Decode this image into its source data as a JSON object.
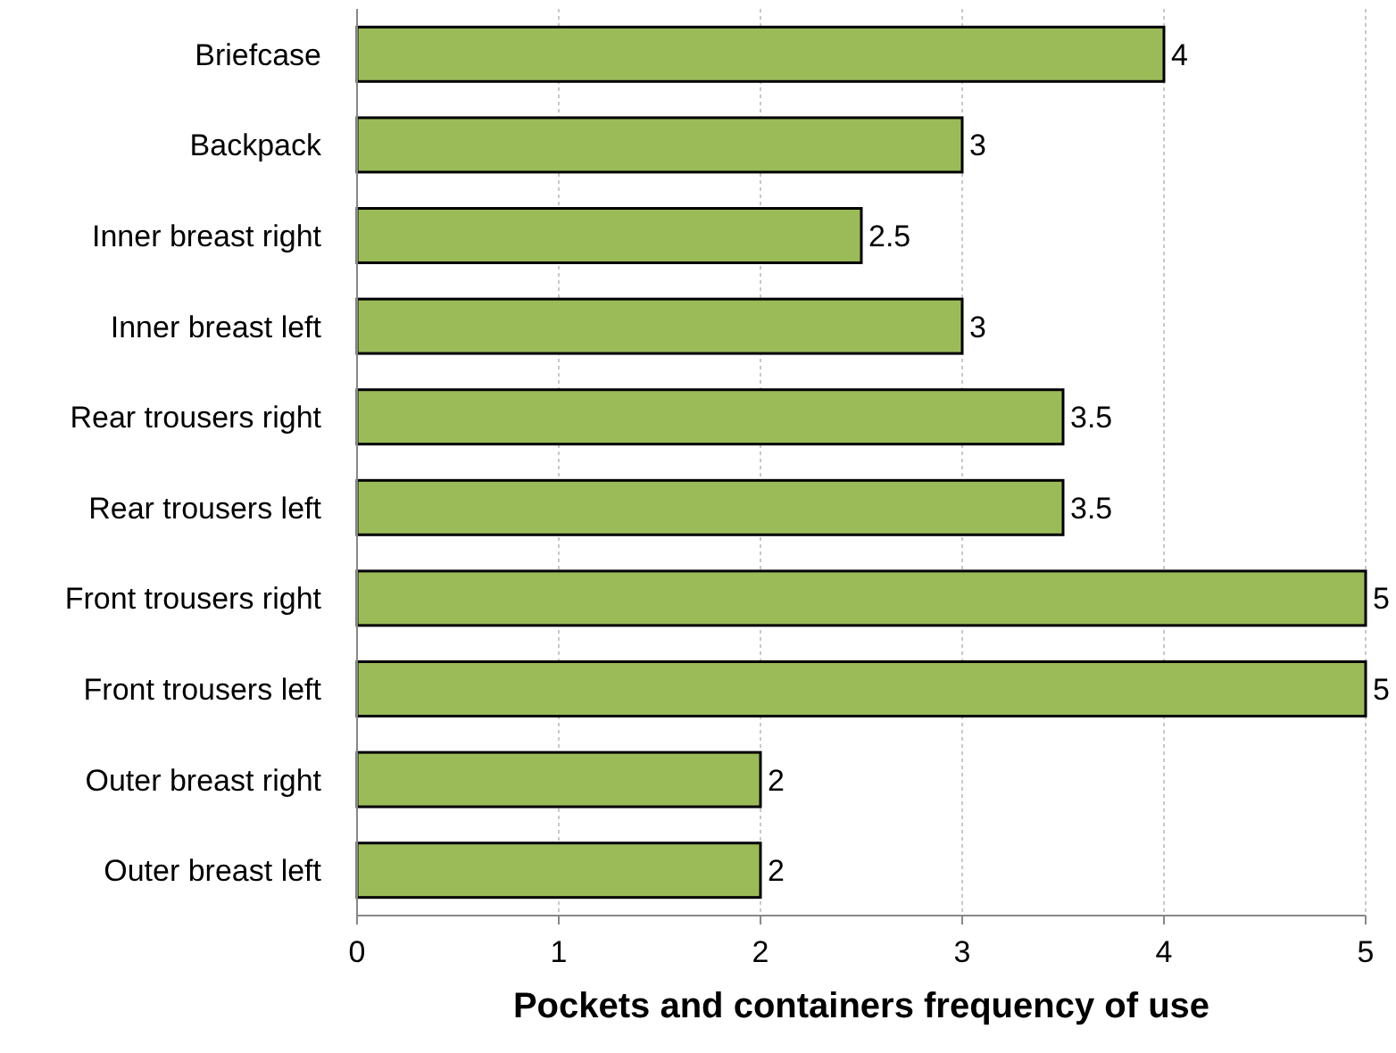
{
  "chart_data": {
    "type": "bar",
    "orientation": "horizontal",
    "xlabel": "Pockets  and containers frequency of use",
    "categories": [
      "Briefcase",
      "Backpack",
      "Inner breast right",
      "Inner breast left",
      "Rear trousers right",
      "Rear trousers left",
      "Front trousers right",
      "Front trousers left",
      "Outer breast right",
      "Outer breast left"
    ],
    "values": [
      4,
      3,
      2.5,
      3,
      3.5,
      3.5,
      5,
      5,
      2,
      2
    ],
    "color": "#9bbb59",
    "xlim": [
      0,
      5
    ],
    "xticks": [
      0,
      1,
      2,
      3,
      4,
      5
    ],
    "grid": "x",
    "data_labels": true
  }
}
